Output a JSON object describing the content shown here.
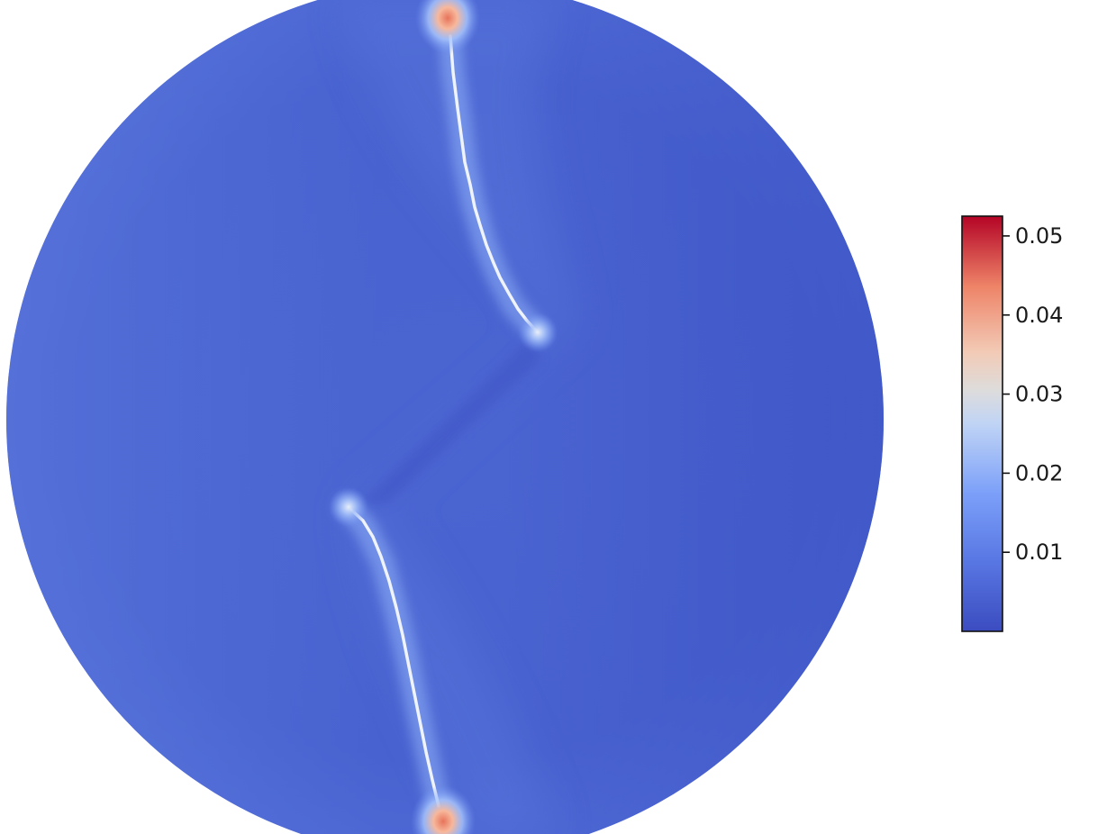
{
  "chart_data": {
    "type": "heatmap",
    "title": "",
    "xlabel": "",
    "ylabel": "",
    "domain_shape": "disk",
    "colormap": "coolwarm",
    "colormap_stops": [
      "#3b4cc0",
      "#6f92f3",
      "#aac7fd",
      "#dddddd",
      "#f7b89c",
      "#e7745b",
      "#b40426"
    ],
    "colorbar": {
      "placement": "right",
      "range": [
        0,
        0.0525
      ],
      "ticks": [
        0.01,
        0.02,
        0.03,
        0.04,
        0.05
      ],
      "tick_labels": [
        "0.01",
        "0.02",
        "0.03",
        "0.04",
        "0.05"
      ]
    },
    "features": {
      "background_value_range": [
        0.0005,
        0.006
      ],
      "crack_value_range": [
        0.015,
        0.025
      ],
      "hotspot_value_range": [
        0.03,
        0.05
      ]
    }
  }
}
